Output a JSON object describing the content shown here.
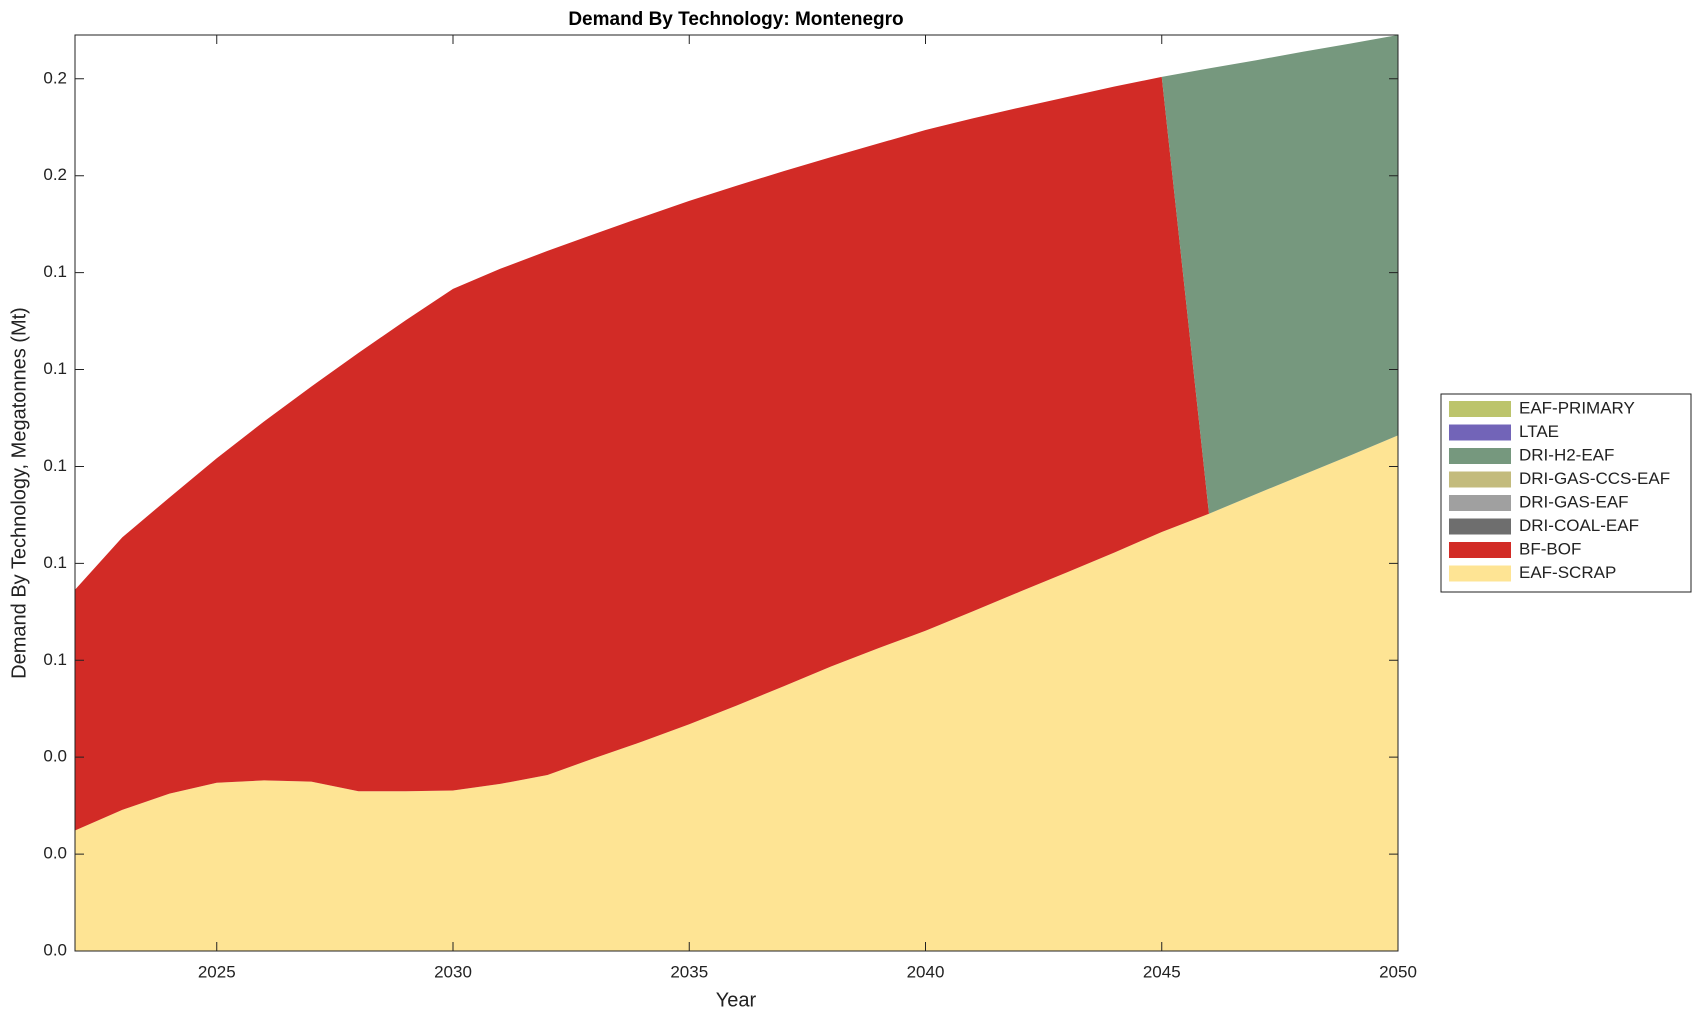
{
  "chart_data": {
    "type": "stacked_area",
    "title": "Demand By Technology: Montenegro",
    "xlabel": "Year",
    "ylabel": "Demand By Technology, Megatonnes (Mt)",
    "x": [
      2022,
      2023,
      2024,
      2025,
      2026,
      2027,
      2028,
      2029,
      2030,
      2031,
      2032,
      2033,
      2034,
      2035,
      2036,
      2037,
      2038,
      2039,
      2040,
      2041,
      2042,
      2043,
      2044,
      2045,
      2046,
      2047,
      2048,
      2049,
      2050
    ],
    "xlim": [
      2022,
      2050
    ],
    "xticks": [
      2025,
      2030,
      2035,
      2040,
      2045,
      2050
    ],
    "ylim": [
      0,
      0.2363
    ],
    "yticks": [
      {
        "value": 0,
        "label": "0.0"
      },
      {
        "value": 0.025,
        "label": "0.0"
      },
      {
        "value": 0.05,
        "label": "0.0"
      },
      {
        "value": 0.075,
        "label": "0.1"
      },
      {
        "value": 0.1,
        "label": "0.1"
      },
      {
        "value": 0.125,
        "label": "0.1"
      },
      {
        "value": 0.15,
        "label": "0.1"
      },
      {
        "value": 0.175,
        "label": "0.1"
      },
      {
        "value": 0.2,
        "label": "0.2"
      },
      {
        "value": 0.225,
        "label": "0.2"
      }
    ],
    "legend": "right",
    "series": [
      {
        "name": "EAF-PRIMARY",
        "color": "#bcc46c",
        "values": [
          0,
          0,
          0,
          0,
          0,
          0,
          0,
          0,
          0,
          0,
          0,
          0,
          0,
          0,
          0,
          0,
          0,
          0,
          0,
          0,
          0,
          0,
          0,
          0,
          0,
          0,
          0,
          0,
          0
        ]
      },
      {
        "name": "LTAE",
        "color": "#7264b8",
        "values": [
          0,
          0,
          0,
          0,
          0,
          0,
          0,
          0,
          0,
          0,
          0,
          0,
          0,
          0,
          0,
          0,
          0,
          0,
          0,
          0,
          0,
          0,
          0,
          0,
          0,
          0,
          0,
          0,
          0
        ]
      },
      {
        "name": "DRI-H2-EAF",
        "color": "#76987e",
        "values": [
          0,
          0,
          0,
          0,
          0,
          0,
          0,
          0,
          0,
          0,
          0,
          0,
          0,
          0,
          0,
          0,
          0,
          0,
          0,
          0,
          0,
          0,
          0,
          0,
          0.1149,
          0.1119,
          0.1091,
          0.1062,
          0.1033
        ]
      },
      {
        "name": "DRI-GAS-CCS-EAF",
        "color": "#c3bb7d",
        "values": [
          0,
          0,
          0,
          0,
          0,
          0,
          0,
          0,
          0,
          0,
          0,
          0,
          0,
          0,
          0,
          0,
          0,
          0,
          0,
          0,
          0,
          0,
          0,
          0,
          0,
          0,
          0,
          0,
          0
        ]
      },
      {
        "name": "DRI-GAS-EAF",
        "color": "#a0a0a0",
        "values": [
          0,
          0,
          0,
          0,
          0,
          0,
          0,
          0,
          0,
          0,
          0,
          0,
          0,
          0,
          0,
          0,
          0,
          0,
          0,
          0,
          0,
          0,
          0,
          0,
          0,
          0,
          0,
          0,
          0
        ]
      },
      {
        "name": "DRI-COAL-EAF",
        "color": "#6e6e6e",
        "values": [
          0,
          0,
          0,
          0,
          0,
          0,
          0,
          0,
          0,
          0,
          0,
          0,
          0,
          0,
          0,
          0,
          0,
          0,
          0,
          0,
          0,
          0,
          0,
          0,
          0,
          0,
          0,
          0,
          0
        ]
      },
      {
        "name": "BF-BOF",
        "color": "#d22b26",
        "values": [
          0.0621,
          0.0703,
          0.0764,
          0.0837,
          0.0926,
          0.1019,
          0.1131,
          0.1215,
          0.1294,
          0.1329,
          0.1352,
          0.1352,
          0.1353,
          0.135,
          0.1341,
          0.1329,
          0.1314,
          0.1302,
          0.1292,
          0.1272,
          0.1249,
          0.1226,
          0.1202,
          0.1174,
          0,
          0,
          0,
          0,
          0
        ]
      },
      {
        "name": "EAF-SCRAP",
        "color": "#fee494",
        "values": [
          0.0311,
          0.0364,
          0.0406,
          0.0434,
          0.044,
          0.0437,
          0.0412,
          0.0412,
          0.0414,
          0.0431,
          0.0454,
          0.0498,
          0.054,
          0.0585,
          0.0633,
          0.0683,
          0.0734,
          0.0781,
          0.0826,
          0.0876,
          0.0927,
          0.0977,
          0.1028,
          0.1081,
          0.1128,
          0.1179,
          0.1229,
          0.1279,
          0.133
        ]
      }
    ]
  }
}
